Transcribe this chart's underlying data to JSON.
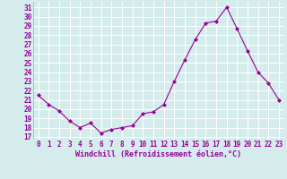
{
  "x": [
    0,
    1,
    2,
    3,
    4,
    5,
    6,
    7,
    8,
    9,
    10,
    11,
    12,
    13,
    14,
    15,
    16,
    17,
    18,
    19,
    20,
    21,
    22,
    23
  ],
  "y": [
    21.5,
    20.5,
    19.8,
    18.7,
    18.0,
    18.5,
    17.4,
    17.8,
    18.0,
    18.2,
    19.5,
    19.7,
    20.5,
    23.0,
    25.3,
    27.5,
    29.3,
    29.5,
    31.0,
    28.7,
    26.3,
    24.0,
    22.8,
    21.0
  ],
  "line_color": "#990099",
  "marker": "D",
  "marker_size": 2.0,
  "bg_color": "#d4ecec",
  "grid_color": "#b0d4d4",
  "xlabel": "Windchill (Refroidissement éolien,°C)",
  "xlabel_color": "#990099",
  "tick_color": "#990099",
  "yticks": [
    17,
    18,
    19,
    20,
    21,
    22,
    23,
    24,
    25,
    26,
    27,
    28,
    29,
    30,
    31
  ],
  "xticks": [
    0,
    1,
    2,
    3,
    4,
    5,
    6,
    7,
    8,
    9,
    10,
    11,
    12,
    13,
    14,
    15,
    16,
    17,
    18,
    19,
    20,
    21,
    22,
    23
  ],
  "ylim": [
    16.7,
    31.6
  ],
  "xlim": [
    -0.5,
    23.5
  ],
  "tick_fontsize": 5.5,
  "xlabel_fontsize": 6.0,
  "linewidth": 0.8
}
